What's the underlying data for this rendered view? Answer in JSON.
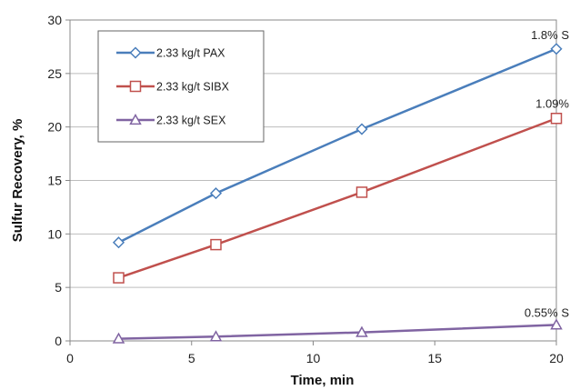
{
  "chart_data": {
    "type": "line",
    "xlabel": "Time, min",
    "ylabel": "Sulfur Recovery, %",
    "xlim": [
      0,
      20
    ],
    "ylim": [
      0,
      30
    ],
    "xticks": [
      0,
      5,
      10,
      15,
      20
    ],
    "yticks": [
      0,
      5,
      10,
      15,
      20,
      25,
      30
    ],
    "grid": "horizontal",
    "legend_position": "top-left",
    "x": [
      2,
      6,
      12,
      20
    ],
    "series": [
      {
        "name": "2.33 kg/t PAX",
        "values": [
          9.2,
          13.8,
          19.8,
          27.3
        ],
        "color": "#4a7ebb",
        "marker": "diamond",
        "end_label": "1.8% S"
      },
      {
        "name": "2.33 kg/t SIBX",
        "values": [
          5.9,
          9.0,
          13.9,
          20.8
        ],
        "color": "#c0504d",
        "marker": "square",
        "end_label": "1.09%"
      },
      {
        "name": "2.33 kg/t SEX",
        "values": [
          0.2,
          0.4,
          0.8,
          1.5
        ],
        "color": "#8064a2",
        "marker": "triangle",
        "end_label": "0.55% S"
      }
    ]
  }
}
